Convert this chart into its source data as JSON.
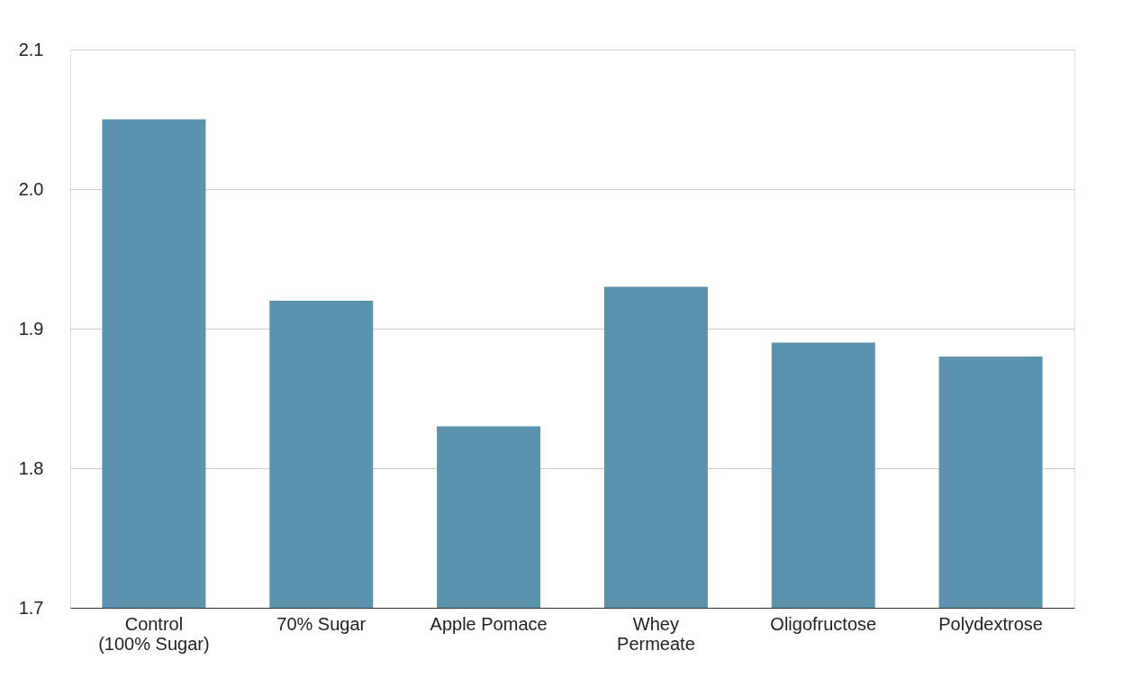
{
  "chart_data": {
    "type": "bar",
    "categories": [
      "Control (100% Sugar)",
      "70% Sugar",
      "Apple Pomace",
      "Whey Permeate",
      "Oligofructose",
      "Polydextrose"
    ],
    "values": [
      2.05,
      1.92,
      1.83,
      1.93,
      1.89,
      1.88
    ],
    "color": "#5b92ae",
    "ylim": [
      1.7,
      2.1
    ],
    "yticks": [
      1.7,
      1.8,
      1.9,
      {
        "value": 2.0,
        "label": "2.0"
      },
      2.1
    ],
    "grid": "y"
  }
}
